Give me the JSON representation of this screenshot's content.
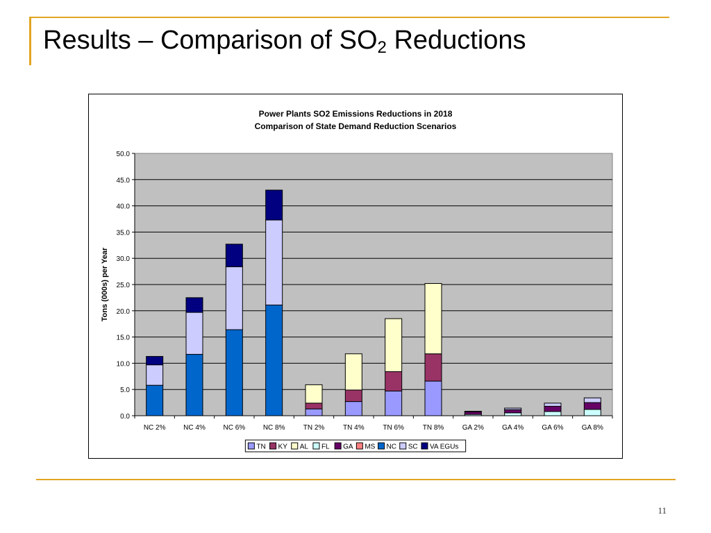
{
  "slide": {
    "title_main": "Results – Comparison of SO",
    "title_sub": "2",
    "title_tail": " Reductions",
    "page_number": "11",
    "accent_color": "#e2a521"
  },
  "chart_data": {
    "type": "bar",
    "stacked": true,
    "title": "Power Plants SO2 Emissions Reductions in 2018",
    "subtitle": "Comparison of State Demand Reduction Scenarios",
    "xlabel": "",
    "ylabel": "Tons (000s) per Year",
    "ylim": [
      0,
      50
    ],
    "yticks": [
      "0.0",
      "5.0",
      "10.0",
      "15.0",
      "20.0",
      "25.0",
      "30.0",
      "35.0",
      "40.0",
      "45.0",
      "50.0"
    ],
    "grid": true,
    "legend_position": "bottom",
    "categories": [
      "NC 2%",
      "NC 4%",
      "NC 6%",
      "NC 8%",
      "TN 2%",
      "TN 4%",
      "TN 6%",
      "TN 8%",
      "GA 2%",
      "GA 4%",
      "GA 6%",
      "GA 8%"
    ],
    "series": [
      {
        "name": "TN",
        "color": "#9999ff",
        "values": [
          0,
          0,
          0,
          0,
          1.3,
          2.7,
          4.7,
          6.6,
          0,
          0,
          0,
          0
        ]
      },
      {
        "name": "KY",
        "color": "#993366",
        "values": [
          0,
          0,
          0,
          0,
          1.1,
          2.2,
          3.7,
          5.2,
          0,
          0,
          0,
          0
        ]
      },
      {
        "name": "AL",
        "color": "#ffffcc",
        "values": [
          0,
          0,
          0,
          0,
          3.5,
          6.9,
          10.1,
          13.4,
          0,
          0,
          0,
          0
        ]
      },
      {
        "name": "FL",
        "color": "#ccffff",
        "values": [
          0,
          0,
          0,
          0,
          0,
          0,
          0,
          0,
          0.25,
          0.55,
          0.8,
          1.2
        ]
      },
      {
        "name": "GA",
        "color": "#660066",
        "values": [
          0,
          0,
          0,
          0,
          0,
          0,
          0,
          0,
          0.5,
          0.6,
          1.0,
          1.3
        ]
      },
      {
        "name": "MS",
        "color": "#ff8080",
        "values": [
          0,
          0,
          0,
          0,
          0,
          0,
          0,
          0,
          0,
          0,
          0,
          0
        ]
      },
      {
        "name": "NC",
        "color": "#0066cc",
        "values": [
          5.8,
          11.7,
          16.4,
          21.1,
          0,
          0,
          0,
          0,
          0,
          0,
          0,
          0
        ]
      },
      {
        "name": "SC",
        "color": "#ccccff",
        "values": [
          3.9,
          8.0,
          12.0,
          16.2,
          0,
          0,
          0,
          0,
          0.1,
          0.3,
          0.6,
          0.9
        ]
      },
      {
        "name": "VA EGUs",
        "color": "#000080",
        "values": [
          1.6,
          2.8,
          4.3,
          5.7,
          0,
          0,
          0,
          0,
          0,
          0,
          0,
          0
        ]
      }
    ]
  }
}
